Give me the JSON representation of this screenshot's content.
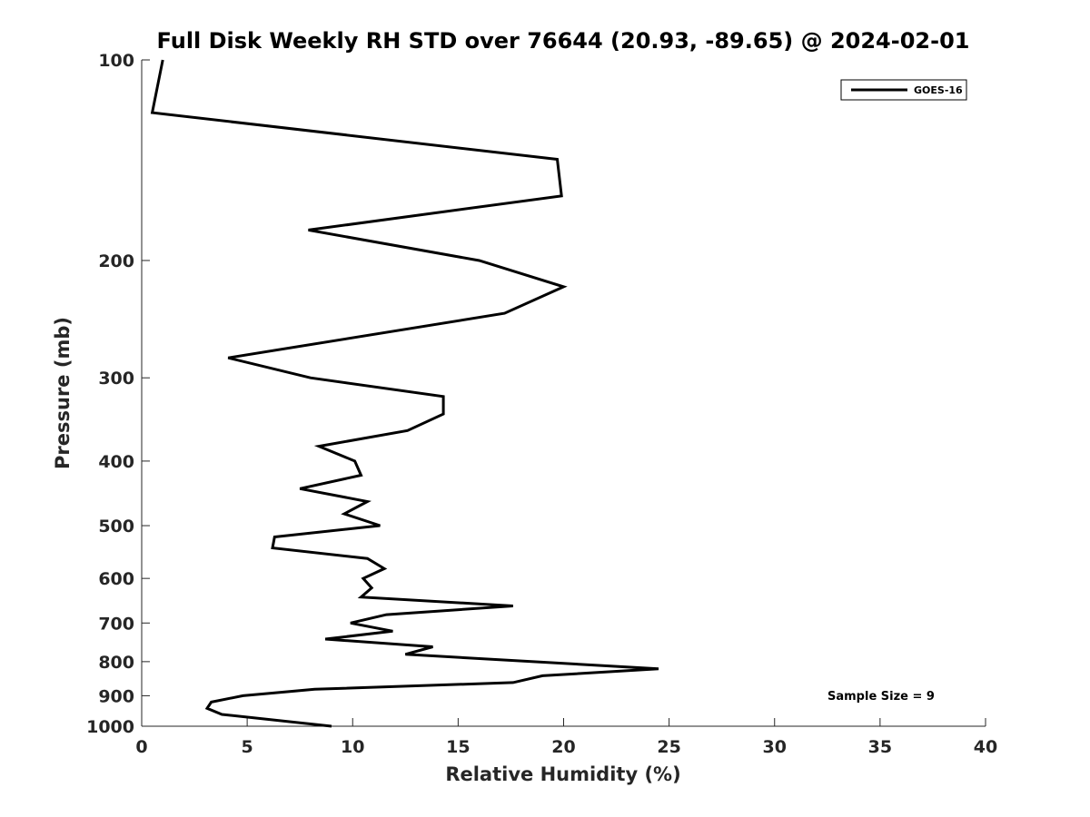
{
  "chart_data": {
    "type": "line",
    "title": "Full Disk Weekly RH STD over 76644 (20.93, -89.65) @ 2024-02-01",
    "xlabel": "Relative Humidity (%)",
    "ylabel": "Pressure (mb)",
    "xlim": [
      0,
      40
    ],
    "ylim": [
      100,
      1000
    ],
    "y_scale": "log",
    "y_reversed": true,
    "x_ticks": [
      0,
      5,
      10,
      15,
      20,
      25,
      30,
      35,
      40
    ],
    "y_ticks": [
      100,
      200,
      300,
      400,
      500,
      600,
      700,
      800,
      900,
      1000
    ],
    "grid": false,
    "legend_position": "top-right",
    "line_color": "#000000",
    "annotation": "Sample Size = 9",
    "series": [
      {
        "name": "GOES-16",
        "points": [
          [
            1.0,
            100
          ],
          [
            0.5,
            120
          ],
          [
            19.7,
            141
          ],
          [
            19.9,
            160
          ],
          [
            7.9,
            180
          ],
          [
            16.0,
            200
          ],
          [
            20.0,
            219
          ],
          [
            17.2,
            240
          ],
          [
            4.1,
            280
          ],
          [
            8.0,
            300
          ],
          [
            14.3,
            320
          ],
          [
            14.3,
            340
          ],
          [
            12.6,
            360
          ],
          [
            8.4,
            380
          ],
          [
            10.1,
            400
          ],
          [
            10.4,
            420
          ],
          [
            7.5,
            440
          ],
          [
            10.7,
            460
          ],
          [
            9.6,
            480
          ],
          [
            11.3,
            500
          ],
          [
            6.3,
            520
          ],
          [
            6.2,
            540
          ],
          [
            10.7,
            560
          ],
          [
            11.5,
            580
          ],
          [
            10.5,
            600
          ],
          [
            10.9,
            620
          ],
          [
            10.4,
            640
          ],
          [
            17.6,
            660
          ],
          [
            11.6,
            680
          ],
          [
            9.9,
            700
          ],
          [
            11.9,
            720
          ],
          [
            8.7,
            740
          ],
          [
            13.8,
            760
          ],
          [
            12.5,
            780
          ],
          [
            24.5,
            820
          ],
          [
            19.0,
            840
          ],
          [
            17.6,
            860
          ],
          [
            8.2,
            880
          ],
          [
            4.8,
            900
          ],
          [
            3.3,
            920
          ],
          [
            3.1,
            940
          ],
          [
            3.8,
            960
          ],
          [
            9.0,
            1000
          ]
        ]
      }
    ]
  }
}
